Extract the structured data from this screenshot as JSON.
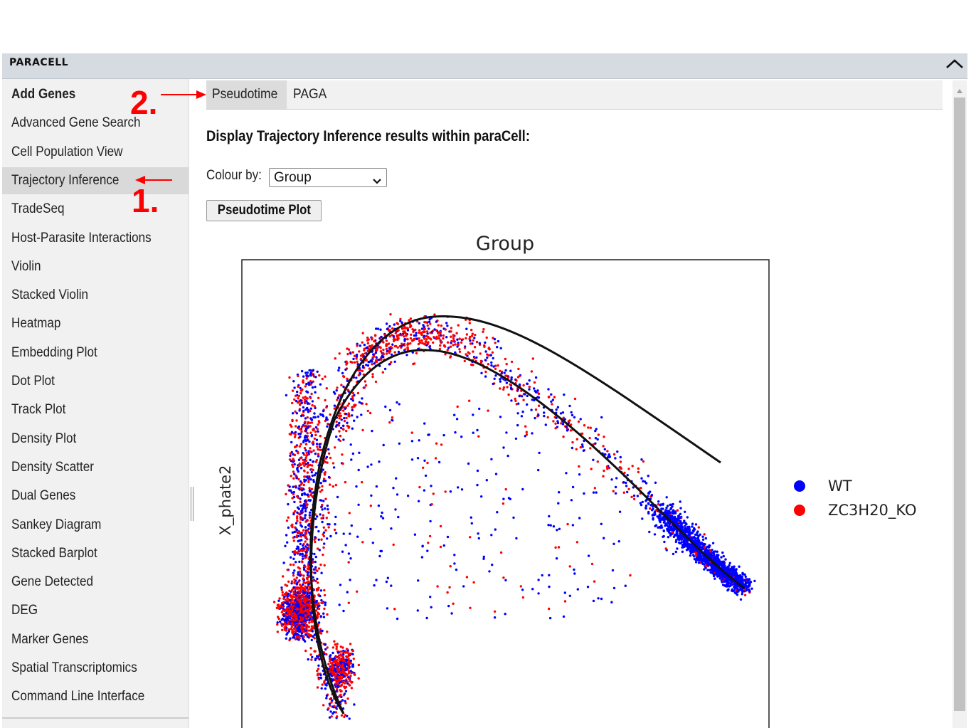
{
  "app": {
    "title": "PARACELL"
  },
  "sidebar": {
    "items": [
      {
        "label": "Add Genes"
      },
      {
        "label": "Advanced Gene Search"
      },
      {
        "label": "Cell Population View"
      },
      {
        "label": "Trajectory Inference"
      },
      {
        "label": "TradeSeq"
      },
      {
        "label": "Host-Parasite Interactions"
      },
      {
        "label": "Violin"
      },
      {
        "label": "Stacked Violin"
      },
      {
        "label": "Heatmap"
      },
      {
        "label": "Embedding Plot"
      },
      {
        "label": "Dot Plot"
      },
      {
        "label": "Track Plot"
      },
      {
        "label": "Density Plot"
      },
      {
        "label": "Density Scatter"
      },
      {
        "label": "Dual Genes"
      },
      {
        "label": "Sankey Diagram"
      },
      {
        "label": "Stacked Barplot"
      },
      {
        "label": "Gene Detected"
      },
      {
        "label": "DEG"
      },
      {
        "label": "Marker Genes"
      },
      {
        "label": "Spatial Transcriptomics"
      },
      {
        "label": "Command Line Interface"
      }
    ],
    "active_item": "Trajectory Inference"
  },
  "tabs": [
    {
      "label": "Pseudotime",
      "active": true
    },
    {
      "label": "PAGA",
      "active": false
    }
  ],
  "main": {
    "heading": "Display Trajectory Inference results within paraCell:",
    "colour_by_label": "Colour by:",
    "colour_by_value": "Group",
    "plot_button_label": "Pseudotime Plot"
  },
  "annotations": {
    "step1": "1.",
    "step2": "2.",
    "color": "#ff0000"
  },
  "icons": {
    "collapse": "chevron-up-icon",
    "select_arrow": "chevron-down-icon",
    "scroll_up": "triangle-up-icon"
  },
  "chart_data": {
    "type": "scatter",
    "title": "Group",
    "xlabel": "",
    "ylabel": "X_phate2",
    "grid": false,
    "legend_position": "right",
    "series": [
      {
        "name": "WT",
        "color": "#0000ff"
      },
      {
        "name": "ZC3H20_KO",
        "color": "#ff0000"
      }
    ],
    "trajectories": 2
  }
}
